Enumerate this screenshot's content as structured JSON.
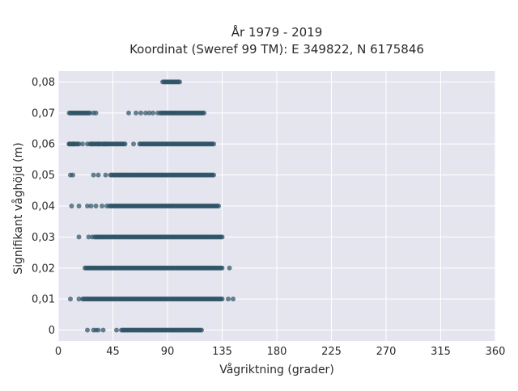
{
  "chart_data": {
    "type": "scatter",
    "title": [
      "År 1979 - 2019",
      "Koordinat (Sweref 99 TM): E 349822, N 6175846"
    ],
    "xlabel": "Vågriktning (grader)",
    "ylabel": "Signifikant våghöjd (m)",
    "xlim": [
      0,
      360
    ],
    "ylim": [
      -0.0035,
      0.0835
    ],
    "x_ticks": [
      0,
      45,
      90,
      135,
      180,
      225,
      270,
      315,
      360
    ],
    "y_ticks": [
      0,
      0.01,
      0.02,
      0.03,
      0.04,
      0.05,
      0.06,
      0.07,
      0.08
    ],
    "y_tick_labels": [
      "0",
      "0,01",
      "0,02",
      "0,03",
      "0,04",
      "0,05",
      "0,06",
      "0,07",
      "0,08"
    ],
    "grid": true,
    "background_color": "#e5e5ef",
    "marker_color": "#2f5366",
    "rows": [
      {
        "y": 0.0,
        "outliers": [
          24,
          29,
          31,
          33,
          37,
          48
        ],
        "solid": [
          [
            52,
            118
          ]
        ]
      },
      {
        "y": 0.01,
        "outliers": [
          10,
          17,
          140,
          144
        ],
        "solid": [
          [
            20,
            135
          ]
        ]
      },
      {
        "y": 0.02,
        "outliers": [
          141
        ],
        "solid": [
          [
            22,
            135
          ]
        ]
      },
      {
        "y": 0.03,
        "outliers": [
          17,
          25,
          28
        ],
        "solid": [
          [
            30,
            135
          ]
        ]
      },
      {
        "y": 0.04,
        "outliers": [
          11,
          17,
          24,
          27,
          31,
          36,
          40
        ],
        "solid": [
          [
            42,
            132
          ]
        ]
      },
      {
        "y": 0.05,
        "outliers": [
          10,
          12,
          29,
          33,
          39
        ],
        "solid": [
          [
            43,
            128
          ]
        ]
      },
      {
        "y": 0.06,
        "outliers": [
          9,
          12,
          17,
          20,
          24,
          28,
          33,
          39,
          55,
          62
        ],
        "solid": [
          [
            9,
            16
          ],
          [
            26,
            54
          ],
          [
            67,
            128
          ]
        ]
      },
      {
        "y": 0.07,
        "outliers": [
          29,
          31,
          58,
          64,
          68,
          72,
          75,
          78,
          82
        ],
        "solid": [
          [
            9,
            26
          ],
          [
            84,
            120
          ]
        ]
      },
      {
        "y": 0.08,
        "outliers": [],
        "solid": [
          [
            86,
            100
          ]
        ]
      }
    ]
  }
}
